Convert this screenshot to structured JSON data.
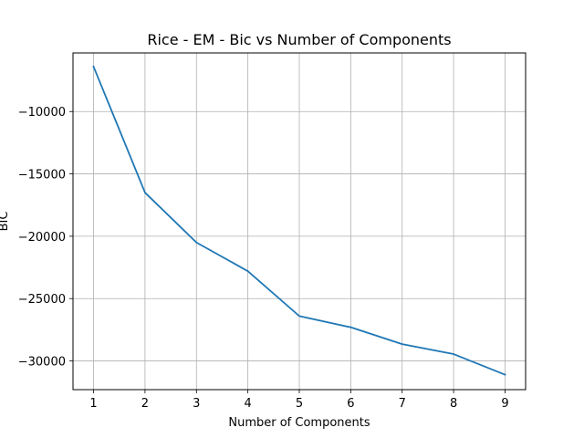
{
  "chart_data": {
    "type": "line",
    "title": "Rice - EM - Bic vs Number of Components",
    "xlabel": "Number of Components",
    "ylabel": "BIC",
    "x": [
      1,
      2,
      3,
      4,
      5,
      6,
      7,
      8,
      9
    ],
    "series": [
      {
        "values": [
          -6400,
          -16500,
          -20500,
          -22800,
          -26400,
          -27300,
          -28650,
          -29450,
          -31100
        ],
        "color": "#1f77b4"
      }
    ],
    "xlim": [
      0.6,
      9.4
    ],
    "ylim": [
      -32300,
      -5300
    ],
    "xticks": [
      1,
      2,
      3,
      4,
      5,
      6,
      7,
      8,
      9
    ],
    "yticks": [
      -10000,
      -15000,
      -20000,
      -25000,
      -30000
    ],
    "ytick_labels": [
      "−10000",
      "−15000",
      "−20000",
      "−25000",
      "−30000"
    ],
    "grid": true
  }
}
